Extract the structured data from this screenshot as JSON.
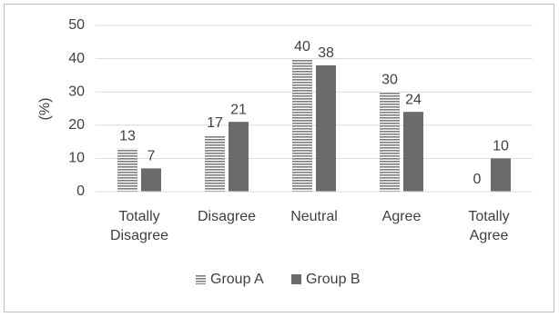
{
  "chart_data": {
    "type": "bar",
    "y_label": "(%)",
    "categories": [
      "Totally Disagree",
      "Disagree",
      "Neutral",
      "Agree",
      "Totally Agree"
    ],
    "series": [
      {
        "name": "Group A",
        "color": "#7f7f7f",
        "pattern": "horizontal-stripes",
        "values": [
          13,
          17,
          40,
          30,
          0
        ]
      },
      {
        "name": "Group B",
        "color": "#6b6b6b",
        "values": [
          7,
          21,
          38,
          24,
          10
        ]
      }
    ],
    "ylim": [
      0,
      50
    ],
    "yticks": [
      0,
      10,
      20,
      30,
      40,
      50
    ],
    "grid": true,
    "legend": "bottom"
  }
}
